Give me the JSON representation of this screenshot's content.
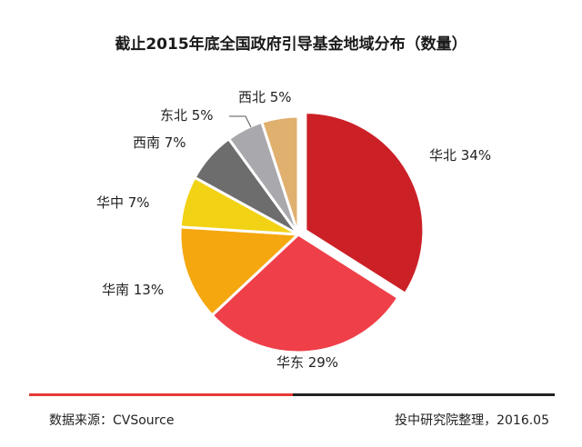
{
  "chart_data": {
    "type": "pie",
    "title": "截止2015年底全国政府引导基金地域分布（数量）",
    "slices": [
      {
        "name": "华北",
        "value": 34,
        "label": "华北 34%",
        "color": "#cc2027",
        "exploded": true
      },
      {
        "name": "华东",
        "value": 29,
        "label": "华东 29%",
        "color": "#ef3f49",
        "exploded": false
      },
      {
        "name": "华南",
        "value": 13,
        "label": "华南 13%",
        "color": "#f5a70f",
        "exploded": false
      },
      {
        "name": "华中",
        "value": 7,
        "label": "华中 7%",
        "color": "#f2d215",
        "exploded": false
      },
      {
        "name": "西南",
        "value": 7,
        "label": "西南 7%",
        "color": "#6d6d6d",
        "exploded": false
      },
      {
        "name": "东北",
        "value": 5,
        "label": "东北 5%",
        "color": "#a9a9ad",
        "exploded": false
      },
      {
        "name": "西北",
        "value": 5,
        "label": "西北 5%",
        "color": "#e0b06f",
        "exploded": false
      }
    ],
    "start": "12 o'clock",
    "direction": "clockwise"
  },
  "footer": {
    "source": "数据来源：CVSource",
    "credit": "投中研究院整理，2016.05"
  }
}
